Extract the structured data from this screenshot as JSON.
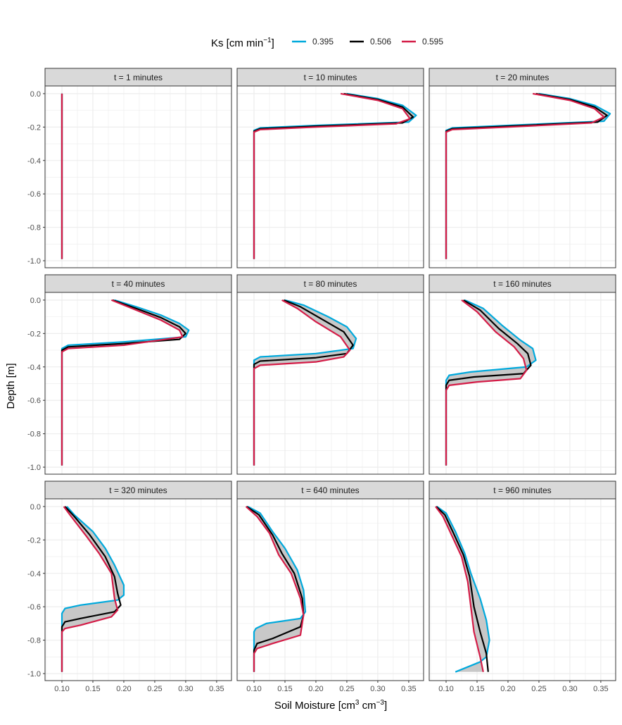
{
  "chart_data": {
    "type": "line",
    "layout": "facet 3x3",
    "xlabel": "Soil Moisture [cm3 cm-3]",
    "xlabel_main": "Soil Moisture [cm",
    "xlabel_sup1": "3",
    "xlabel_mid": " cm",
    "xlabel_sup2": "−3",
    "xlabel_end": "]",
    "ylabel": "Depth [m]",
    "xlim": [
      0.0727,
      0.374
    ],
    "ylim": [
      -1.042,
      0.046
    ],
    "xticks": [
      "0.10",
      "0.15",
      "0.20",
      "0.25",
      "0.30",
      "0.35"
    ],
    "xtick_values": [
      0.1,
      0.15,
      0.2,
      0.25,
      0.3,
      0.35
    ],
    "yticks": [
      "0.0",
      "-0.2",
      "-0.4",
      "-0.6",
      "-0.8",
      "-1.0"
    ],
    "ytick_values": [
      0,
      -0.2,
      -0.4,
      -0.6,
      -0.8,
      -1.0
    ],
    "grid": true,
    "legend": {
      "title_main": "Ks [cm min",
      "title_sup": "−1",
      "title_end": "]",
      "placement": "top",
      "entries": [
        {
          "label": "0.395",
          "color": "#00A9DC"
        },
        {
          "label": "0.506",
          "color": "#000000"
        },
        {
          "label": "0.595",
          "color": "#D41C47"
        }
      ]
    },
    "ribbon_color": "#BEBEBE",
    "panels": [
      {
        "title": "t = 1 minutes",
        "series": [
          [
            [
              0.1,
              0
            ],
            [
              0.1,
              -0.99
            ]
          ],
          [
            [
              0.1,
              0
            ],
            [
              0.1,
              -0.99
            ]
          ],
          [
            [
              0.1,
              0
            ],
            [
              0.1,
              -0.99
            ]
          ]
        ]
      },
      {
        "title": "t = 10 minutes",
        "series": [
          [
            [
              0.25,
              0
            ],
            [
              0.3,
              -0.03
            ],
            [
              0.34,
              -0.07
            ],
            [
              0.362,
              -0.13
            ],
            [
              0.35,
              -0.17
            ],
            [
              0.2,
              -0.19
            ],
            [
              0.11,
              -0.205
            ],
            [
              0.1,
              -0.22
            ],
            [
              0.1,
              -0.99
            ]
          ],
          [
            [
              0.245,
              0
            ],
            [
              0.3,
              -0.035
            ],
            [
              0.34,
              -0.08
            ],
            [
              0.357,
              -0.14
            ],
            [
              0.34,
              -0.175
            ],
            [
              0.2,
              -0.195
            ],
            [
              0.11,
              -0.21
            ],
            [
              0.1,
              -0.225
            ],
            [
              0.1,
              -0.99
            ]
          ],
          [
            [
              0.24,
              0
            ],
            [
              0.3,
              -0.04
            ],
            [
              0.34,
              -0.09
            ],
            [
              0.352,
              -0.15
            ],
            [
              0.33,
              -0.18
            ],
            [
              0.2,
              -0.2
            ],
            [
              0.11,
              -0.215
            ],
            [
              0.1,
              -0.23
            ],
            [
              0.1,
              -0.99
            ]
          ]
        ]
      },
      {
        "title": "t = 20 minutes",
        "series": [
          [
            [
              0.25,
              0
            ],
            [
              0.3,
              -0.03
            ],
            [
              0.34,
              -0.07
            ],
            [
              0.365,
              -0.12
            ],
            [
              0.355,
              -0.165
            ],
            [
              0.2,
              -0.19
            ],
            [
              0.11,
              -0.205
            ],
            [
              0.1,
              -0.22
            ],
            [
              0.1,
              -0.99
            ]
          ],
          [
            [
              0.245,
              0
            ],
            [
              0.3,
              -0.035
            ],
            [
              0.34,
              -0.08
            ],
            [
              0.36,
              -0.13
            ],
            [
              0.345,
              -0.17
            ],
            [
              0.2,
              -0.195
            ],
            [
              0.11,
              -0.21
            ],
            [
              0.1,
              -0.225
            ],
            [
              0.1,
              -0.99
            ]
          ],
          [
            [
              0.24,
              0
            ],
            [
              0.3,
              -0.04
            ],
            [
              0.34,
              -0.09
            ],
            [
              0.355,
              -0.14
            ],
            [
              0.335,
              -0.175
            ],
            [
              0.2,
              -0.2
            ],
            [
              0.11,
              -0.215
            ],
            [
              0.1,
              -0.23
            ],
            [
              0.1,
              -0.99
            ]
          ]
        ]
      },
      {
        "title": "t = 40 minutes",
        "series": [
          [
            [
              0.185,
              0
            ],
            [
              0.22,
              -0.04
            ],
            [
              0.26,
              -0.09
            ],
            [
              0.29,
              -0.14
            ],
            [
              0.305,
              -0.18
            ],
            [
              0.3,
              -0.22
            ],
            [
              0.2,
              -0.25
            ],
            [
              0.11,
              -0.27
            ],
            [
              0.1,
              -0.29
            ],
            [
              0.1,
              -0.99
            ]
          ],
          [
            [
              0.182,
              0
            ],
            [
              0.22,
              -0.05
            ],
            [
              0.26,
              -0.105
            ],
            [
              0.29,
              -0.16
            ],
            [
              0.3,
              -0.2
            ],
            [
              0.29,
              -0.235
            ],
            [
              0.2,
              -0.26
            ],
            [
              0.11,
              -0.28
            ],
            [
              0.1,
              -0.3
            ],
            [
              0.1,
              -0.99
            ]
          ],
          [
            [
              0.18,
              0
            ],
            [
              0.22,
              -0.06
            ],
            [
              0.26,
              -0.12
            ],
            [
              0.29,
              -0.18
            ],
            [
              0.295,
              -0.22
            ],
            [
              0.2,
              -0.27
            ],
            [
              0.11,
              -0.29
            ],
            [
              0.1,
              -0.31
            ],
            [
              0.1,
              -0.99
            ]
          ]
        ]
      },
      {
        "title": "t = 80 minutes",
        "series": [
          [
            [
              0.15,
              0
            ],
            [
              0.18,
              -0.03
            ],
            [
              0.22,
              -0.1
            ],
            [
              0.25,
              -0.16
            ],
            [
              0.265,
              -0.23
            ],
            [
              0.26,
              -0.29
            ],
            [
              0.2,
              -0.32
            ],
            [
              0.11,
              -0.34
            ],
            [
              0.1,
              -0.36
            ],
            [
              0.1,
              -0.99
            ]
          ],
          [
            [
              0.148,
              0
            ],
            [
              0.175,
              -0.04
            ],
            [
              0.21,
              -0.115
            ],
            [
              0.245,
              -0.19
            ],
            [
              0.26,
              -0.27
            ],
            [
              0.25,
              -0.32
            ],
            [
              0.2,
              -0.345
            ],
            [
              0.11,
              -0.365
            ],
            [
              0.1,
              -0.385
            ],
            [
              0.1,
              -0.99
            ]
          ],
          [
            [
              0.145,
              0
            ],
            [
              0.17,
              -0.05
            ],
            [
              0.2,
              -0.13
            ],
            [
              0.24,
              -0.22
            ],
            [
              0.255,
              -0.3
            ],
            [
              0.245,
              -0.34
            ],
            [
              0.2,
              -0.37
            ],
            [
              0.11,
              -0.39
            ],
            [
              0.1,
              -0.41
            ],
            [
              0.1,
              -0.99
            ]
          ]
        ]
      },
      {
        "title": "t = 160 minutes",
        "series": [
          [
            [
              0.13,
              0
            ],
            [
              0.16,
              -0.05
            ],
            [
              0.19,
              -0.15
            ],
            [
              0.22,
              -0.24
            ],
            [
              0.24,
              -0.29
            ],
            [
              0.245,
              -0.36
            ],
            [
              0.23,
              -0.4
            ],
            [
              0.14,
              -0.43
            ],
            [
              0.105,
              -0.45
            ],
            [
              0.1,
              -0.48
            ],
            [
              0.1,
              -0.99
            ]
          ],
          [
            [
              0.128,
              0
            ],
            [
              0.155,
              -0.06
            ],
            [
              0.185,
              -0.17
            ],
            [
              0.215,
              -0.26
            ],
            [
              0.232,
              -0.32
            ],
            [
              0.237,
              -0.39
            ],
            [
              0.225,
              -0.44
            ],
            [
              0.145,
              -0.46
            ],
            [
              0.105,
              -0.48
            ],
            [
              0.1,
              -0.51
            ],
            [
              0.1,
              -0.99
            ]
          ],
          [
            [
              0.125,
              0
            ],
            [
              0.15,
              -0.07
            ],
            [
              0.18,
              -0.19
            ],
            [
              0.21,
              -0.28
            ],
            [
              0.225,
              -0.35
            ],
            [
              0.23,
              -0.42
            ],
            [
              0.22,
              -0.47
            ],
            [
              0.15,
              -0.49
            ],
            [
              0.105,
              -0.51
            ],
            [
              0.1,
              -0.54
            ],
            [
              0.1,
              -0.99
            ]
          ]
        ]
      },
      {
        "title": "t = 320 minutes",
        "series": [
          [
            [
              0.108,
              0
            ],
            [
              0.12,
              -0.05
            ],
            [
              0.15,
              -0.15
            ],
            [
              0.17,
              -0.25
            ],
            [
              0.185,
              -0.35
            ],
            [
              0.2,
              -0.47
            ],
            [
              0.2,
              -0.53
            ],
            [
              0.19,
              -0.56
            ],
            [
              0.13,
              -0.59
            ],
            [
              0.105,
              -0.61
            ],
            [
              0.1,
              -0.64
            ],
            [
              0.1,
              -0.99
            ]
          ],
          [
            [
              0.105,
              0
            ],
            [
              0.12,
              -0.06
            ],
            [
              0.145,
              -0.17
            ],
            [
              0.17,
              -0.3
            ],
            [
              0.185,
              -0.42
            ],
            [
              0.19,
              -0.52
            ],
            [
              0.195,
              -0.59
            ],
            [
              0.185,
              -0.63
            ],
            [
              0.13,
              -0.67
            ],
            [
              0.105,
              -0.69
            ],
            [
              0.1,
              -0.72
            ],
            [
              0.1,
              -0.99
            ]
          ],
          [
            [
              0.103,
              0
            ],
            [
              0.115,
              -0.06
            ],
            [
              0.14,
              -0.18
            ],
            [
              0.16,
              -0.28
            ],
            [
              0.18,
              -0.4
            ],
            [
              0.185,
              -0.55
            ],
            [
              0.19,
              -0.62
            ],
            [
              0.18,
              -0.66
            ],
            [
              0.13,
              -0.71
            ],
            [
              0.105,
              -0.73
            ],
            [
              0.1,
              -0.75
            ],
            [
              0.1,
              -0.99
            ]
          ]
        ]
      },
      {
        "title": "t = 640 minutes",
        "series": [
          [
            [
              0.09,
              0
            ],
            [
              0.11,
              -0.04
            ],
            [
              0.13,
              -0.15
            ],
            [
              0.15,
              -0.25
            ],
            [
              0.17,
              -0.38
            ],
            [
              0.18,
              -0.5
            ],
            [
              0.183,
              -0.63
            ],
            [
              0.175,
              -0.67
            ],
            [
              0.12,
              -0.7
            ],
            [
              0.103,
              -0.73
            ],
            [
              0.1,
              -0.75
            ],
            [
              0.1,
              -0.99
            ]
          ],
          [
            [
              0.088,
              0
            ],
            [
              0.108,
              -0.05
            ],
            [
              0.13,
              -0.17
            ],
            [
              0.145,
              -0.28
            ],
            [
              0.165,
              -0.4
            ],
            [
              0.178,
              -0.55
            ],
            [
              0.18,
              -0.65
            ],
            [
              0.175,
              -0.72
            ],
            [
              0.13,
              -0.79
            ],
            [
              0.105,
              -0.82
            ],
            [
              0.1,
              -0.86
            ],
            [
              0.1,
              -0.99
            ]
          ],
          [
            [
              0.087,
              0
            ],
            [
              0.105,
              -0.06
            ],
            [
              0.125,
              -0.16
            ],
            [
              0.14,
              -0.29
            ],
            [
              0.16,
              -0.4
            ],
            [
              0.175,
              -0.55
            ],
            [
              0.18,
              -0.65
            ],
            [
              0.175,
              -0.77
            ],
            [
              0.13,
              -0.82
            ],
            [
              0.105,
              -0.85
            ],
            [
              0.1,
              -0.88
            ],
            [
              0.1,
              -0.99
            ]
          ]
        ]
      },
      {
        "title": "t = 960 minutes",
        "series": [
          [
            [
              0.085,
              0
            ],
            [
              0.1,
              -0.04
            ],
            [
              0.115,
              -0.15
            ],
            [
              0.13,
              -0.28
            ],
            [
              0.14,
              -0.4
            ],
            [
              0.155,
              -0.55
            ],
            [
              0.165,
              -0.68
            ],
            [
              0.17,
              -0.8
            ],
            [
              0.165,
              -0.9
            ],
            [
              0.155,
              -0.93
            ],
            [
              0.115,
              -0.99
            ]
          ],
          [
            [
              0.084,
              0
            ],
            [
              0.098,
              -0.05
            ],
            [
              0.112,
              -0.16
            ],
            [
              0.128,
              -0.29
            ],
            [
              0.138,
              -0.42
            ],
            [
              0.145,
              -0.6
            ],
            [
              0.155,
              -0.75
            ],
            [
              0.165,
              -0.88
            ],
            [
              0.168,
              -0.99
            ]
          ],
          [
            [
              0.083,
              0
            ],
            [
              0.095,
              -0.06
            ],
            [
              0.11,
              -0.18
            ],
            [
              0.125,
              -0.3
            ],
            [
              0.135,
              -0.45
            ],
            [
              0.14,
              -0.6
            ],
            [
              0.145,
              -0.75
            ],
            [
              0.155,
              -0.9
            ],
            [
              0.16,
              -0.99
            ]
          ]
        ]
      }
    ]
  }
}
